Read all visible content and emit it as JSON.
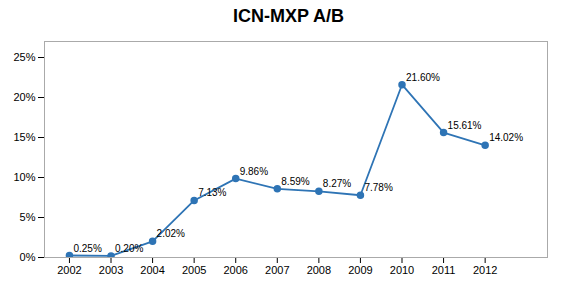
{
  "chart_data": {
    "type": "line",
    "title": "ICN-MXP A/B",
    "x": [
      2002,
      2003,
      2004,
      2005,
      2006,
      2007,
      2008,
      2009,
      2010,
      2011,
      2012
    ],
    "values": [
      0.0025,
      0.002,
      0.0202,
      0.0713,
      0.0986,
      0.0859,
      0.0827,
      0.0778,
      0.216,
      0.1561,
      0.1402
    ],
    "value_labels": [
      "0.25%",
      "0.20%",
      "2.02%",
      "7.13%",
      "9.86%",
      "8.59%",
      "8.27%",
      "7.78%",
      "21.60%",
      "15.61%",
      "14.02%"
    ],
    "data_labels": true,
    "color": "#2E74B5",
    "marker": "circle",
    "xlim": [
      2001.4,
      2013.5
    ],
    "xticks": [
      2002,
      2003,
      2004,
      2005,
      2006,
      2007,
      2008,
      2009,
      2010,
      2011,
      2012
    ],
    "ylim": [
      0,
      0.27
    ],
    "yticks": [
      {
        "value": 0,
        "label": "0%"
      },
      {
        "value": 0.05,
        "label": "5%"
      },
      {
        "value": 0.1,
        "label": "10%"
      },
      {
        "value": 0.15,
        "label": "15%"
      },
      {
        "value": 0.2,
        "label": "20%"
      },
      {
        "value": 0.25,
        "label": "25%"
      }
    ]
  }
}
